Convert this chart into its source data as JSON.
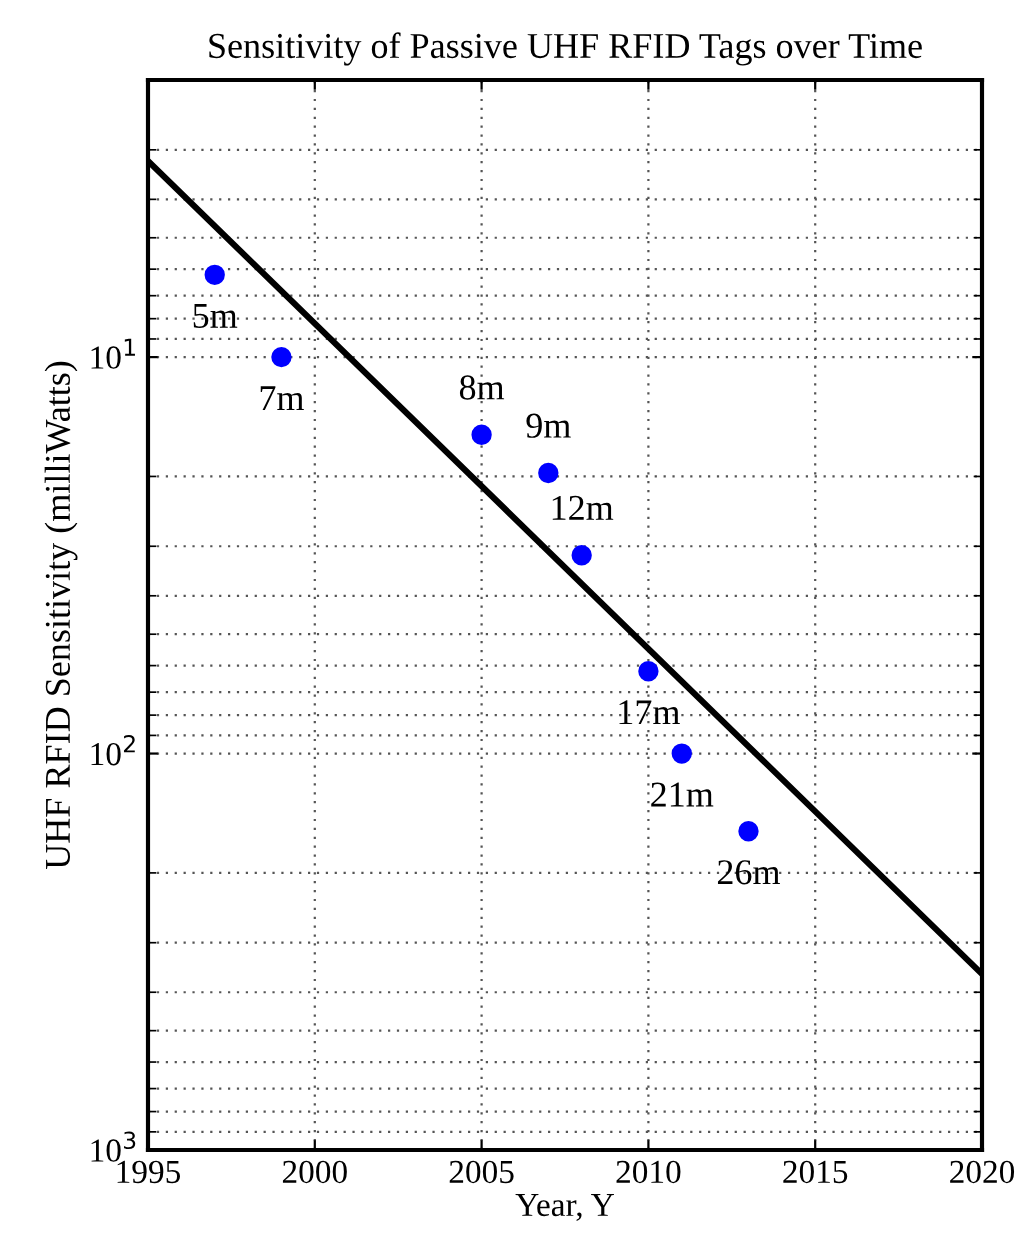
{
  "chart_data": {
    "type": "scatter",
    "title": "Sensitivity of Passive UHF RFID Tags over Time",
    "xlabel": "Year, Y",
    "ylabel": "UHF RFID Sensitivity (milliWatts)",
    "log": "y",
    "grid": true,
    "legend": false,
    "xlim": [
      1995,
      2020
    ],
    "xticks": [
      1995,
      2000,
      2005,
      2010,
      2015,
      2020
    ],
    "ylim": [
      1000,
      2
    ],
    "yticks": [
      {
        "value": 10,
        "label": "10$^{1}$"
      },
      {
        "value": 100,
        "label": "10$^{2}$"
      },
      {
        "value": 1000,
        "label": "10$^{3}$"
      }
    ],
    "series": [
      {
        "color": "#0000ff",
        "marker": "circle",
        "x": [
          1997,
          1999,
          2005,
          2007,
          2008,
          2010,
          2011,
          2013
        ],
        "values": [
          6.2,
          10,
          15.7,
          19.6,
          31.6,
          62,
          100,
          157
        ]
      },
      {
        "type": "line",
        "color": "#000000",
        "line_style": "solid",
        "marker": "none",
        "x": [
          1995,
          2020
        ],
        "values": [
          3.2,
          360
        ]
      }
    ],
    "annotations": [
      {
        "text": "5m",
        "x": 1997,
        "y": 6.2
      },
      {
        "text": "7m",
        "x": 1999,
        "y": 10
      },
      {
        "text": "8m",
        "x": 2005,
        "y": 15.7
      },
      {
        "text": "9m",
        "x": 2007,
        "y": 19.6
      },
      {
        "text": "12m",
        "x": 2008,
        "y": 31.6
      },
      {
        "text": "17m",
        "x": 2010,
        "y": 62
      },
      {
        "text": "21m",
        "x": 2011,
        "y": 100
      },
      {
        "text": "26m",
        "x": 2013,
        "y": 157
      }
    ]
  }
}
